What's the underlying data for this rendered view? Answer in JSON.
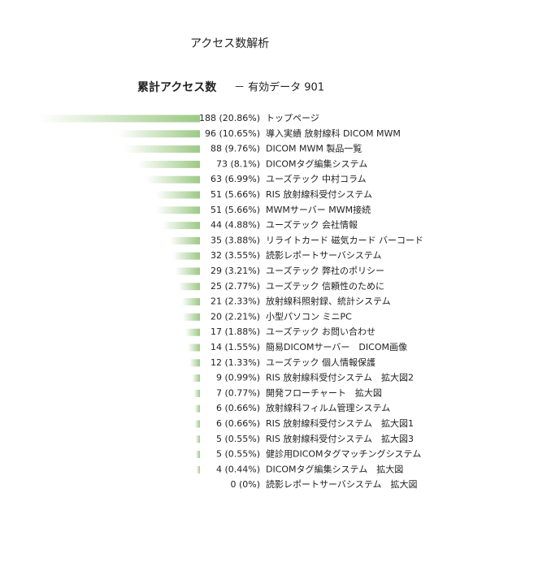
{
  "chart_data": {
    "type": "bar",
    "orientation": "horizontal",
    "title": "アクセス数解析",
    "subtitle": "累計アクセス数",
    "note": "－ 有効データ 901",
    "color": "#9dc985",
    "categories": [
      "トップページ",
      "導入実績 放射線科 DICOM MWM",
      "DICOM MWM 製品一覧",
      "DICOMタグ編集システム",
      "ユーズテック 中村コラム",
      "RIS 放射線科受付システム",
      "MWMサーバー MWM接続",
      "ユーズテック 会社情報",
      "リライトカード 磁気カード バーコード",
      "読影レポートサーバシステム",
      "ユーズテック 弊社のポリシー",
      "ユーズテック 信頼性のために",
      "放射線科照射録、統計システム",
      "小型パソコン ミニPC",
      "ユーズテック お問い合わせ",
      "簡易DICOMサーバー　DICOM画像",
      "ユーズテック 個人情報保護",
      "RIS 放射線科受付システム　拡大図2",
      "開発フローチャート　拡大図",
      "放射線科フィルム管理システム",
      "RIS 放射線科受付システム　拡大図1",
      "RIS 放射線科受付システム　拡大図3",
      "健診用DICOMタグマッチングシステム",
      "DICOMタグ編集システム　拡大図",
      "読影レポートサーバシステム　拡大図"
    ],
    "values": [
      188,
      96,
      88,
      73,
      63,
      51,
      51,
      44,
      35,
      32,
      29,
      25,
      21,
      20,
      17,
      14,
      12,
      9,
      7,
      6,
      6,
      5,
      5,
      4,
      0
    ],
    "value_labels": [
      "188 (20.86%)",
      "96 (10.65%)",
      "88 (9.76%)",
      "73 (8.1%)",
      "63 (6.99%)",
      "51 (5.66%)",
      "51 (5.66%)",
      "44 (4.88%)",
      "35 (3.88%)",
      "32 (3.55%)",
      "29 (3.21%)",
      "25 (2.77%)",
      "21 (2.33%)",
      "20 (2.21%)",
      "17 (1.88%)",
      "14 (1.55%)",
      "12 (1.33%)",
      "9 (0.99%)",
      "7 (0.77%)",
      "6 (0.66%)",
      "6 (0.66%)",
      "5 (0.55%)",
      "5 (0.55%)",
      "4 (0.44%)",
      "0 (0%)"
    ]
  }
}
